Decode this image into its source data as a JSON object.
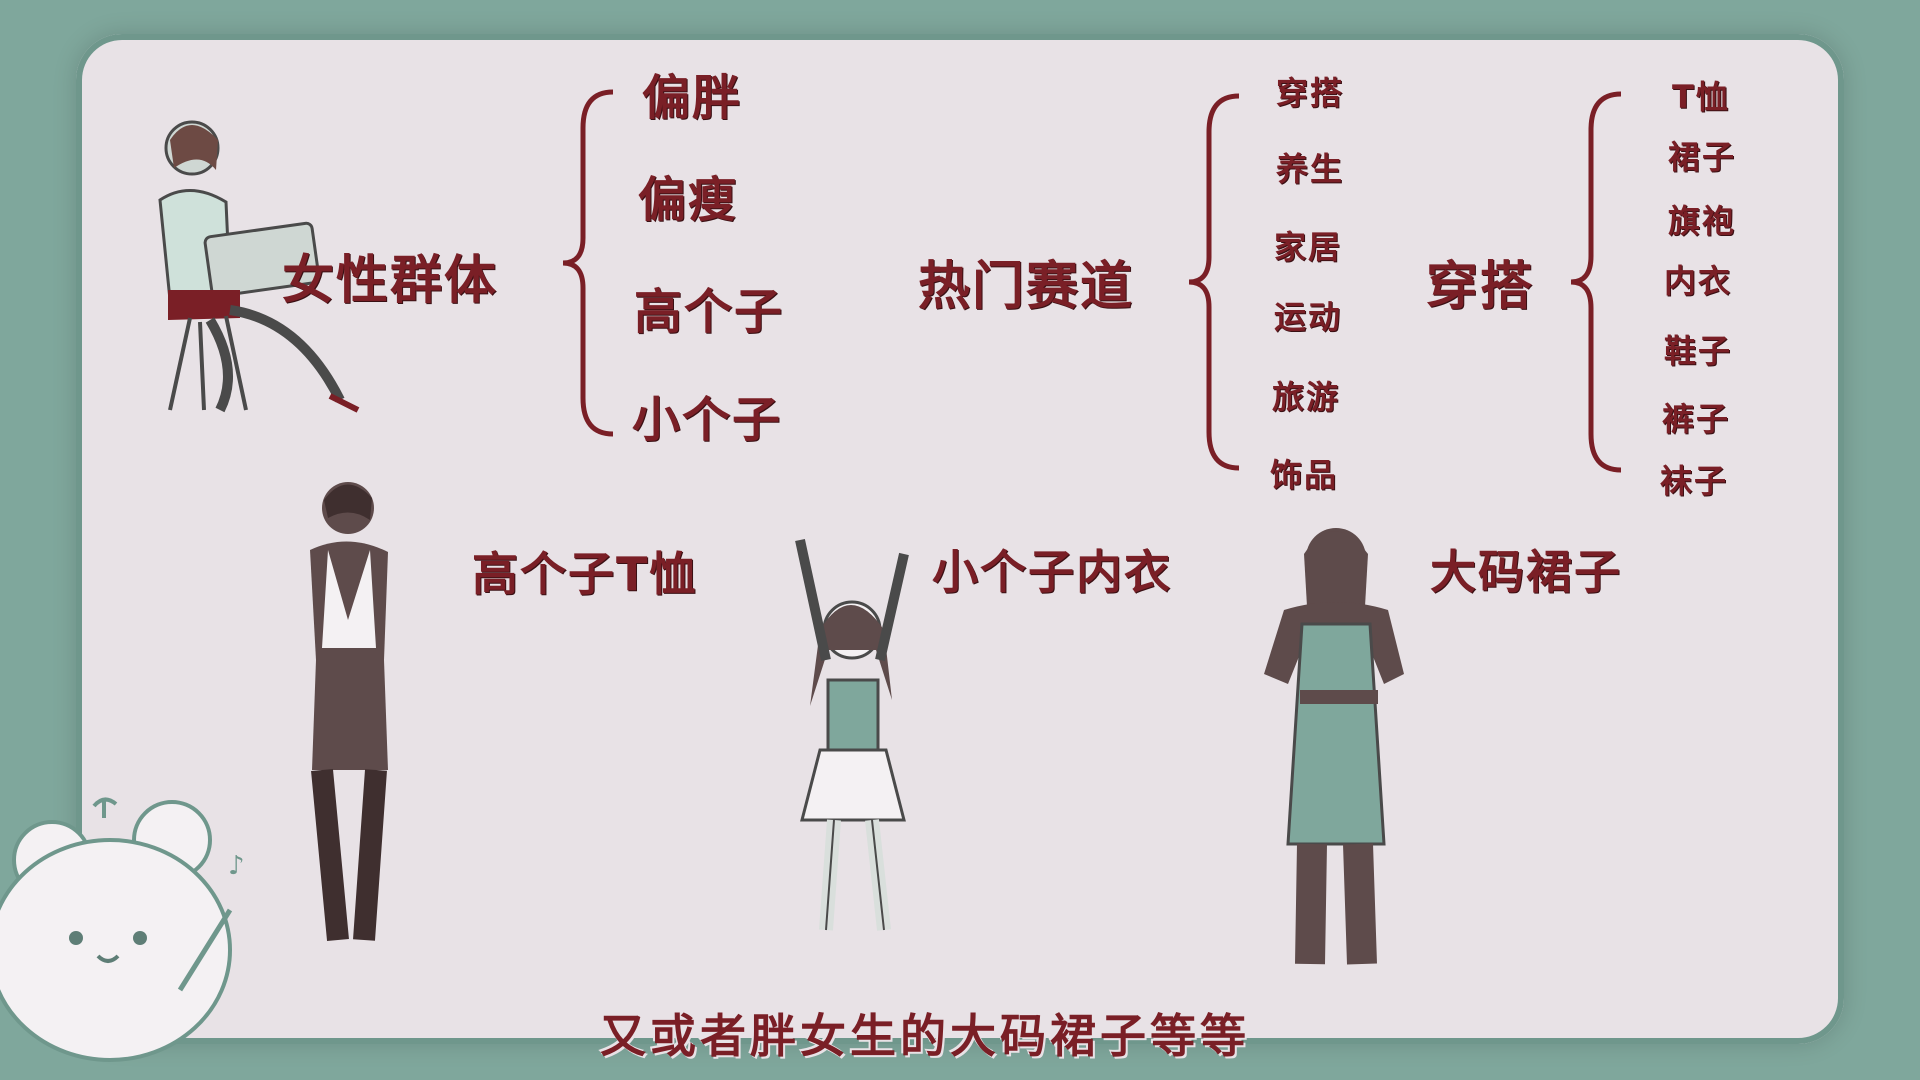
{
  "group1": {
    "title": "女性群体",
    "items": [
      "偏胖",
      "偏瘦",
      "高个子",
      "小个子"
    ]
  },
  "group2": {
    "title": "热门赛道",
    "items": [
      "穿搭",
      "养生",
      "家居",
      "运动",
      "旅游",
      "饰品"
    ]
  },
  "group3": {
    "title": "穿搭",
    "items": [
      "T恤",
      "裙子",
      "旗袍",
      "内衣",
      "鞋子",
      "裤子",
      "袜子"
    ]
  },
  "examples": [
    "高个子T恤",
    "小个子内衣",
    "大码裙子"
  ],
  "subtitle": "又或者胖女生的大码裙子等等",
  "colors": {
    "background": "#7fa79c",
    "board": "#e8e2e6",
    "text": "#7a1f26",
    "figure_dark": "#5e4b4b",
    "figure_teal": "#7fa79c"
  }
}
